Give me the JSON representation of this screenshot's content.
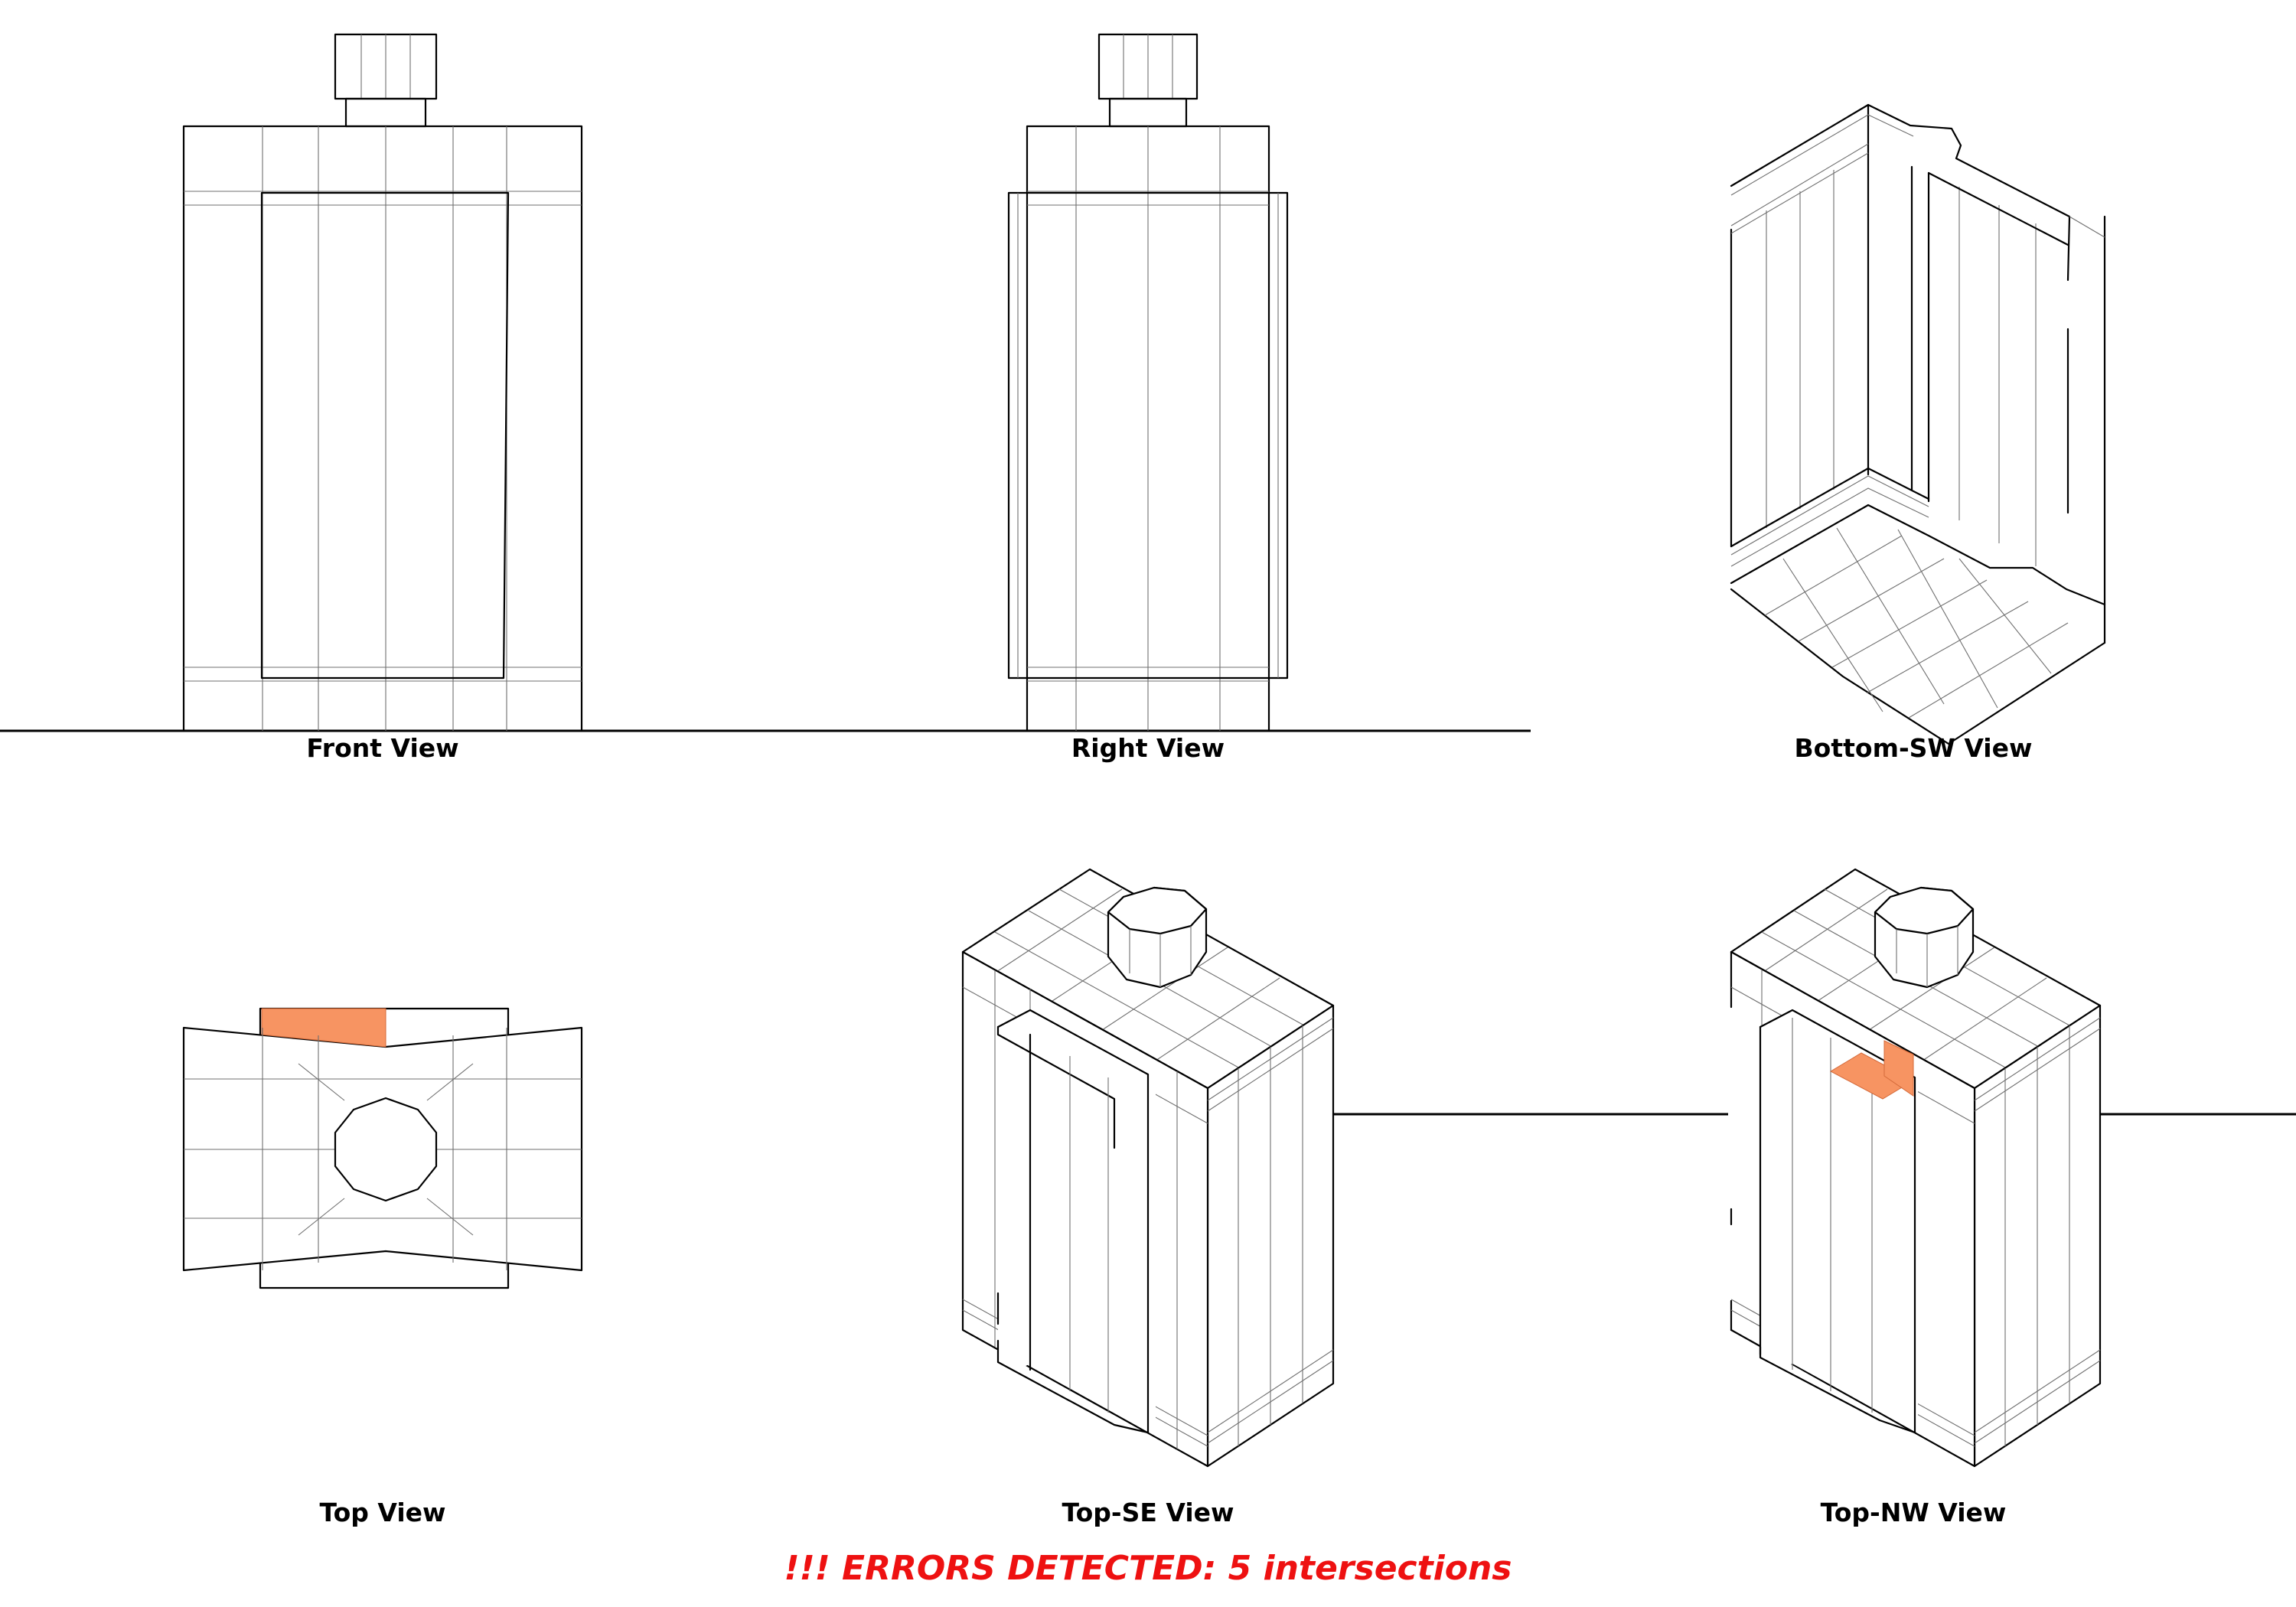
{
  "views": {
    "front": {
      "label": "Front View"
    },
    "right": {
      "label": "Right View"
    },
    "bottom_sw": {
      "label": "Bottom-SW View"
    },
    "top": {
      "label": "Top View"
    },
    "top_se": {
      "label": "Top-SE View"
    },
    "top_nw": {
      "label": "Top-NW View"
    }
  },
  "status": {
    "error_message": "!!! ERRORS DETECTED: 5 intersections",
    "error_color": "#ee1111"
  },
  "colors": {
    "edge": "#000000",
    "mesh": "#6f6f6f",
    "highlight": "#f79462"
  }
}
